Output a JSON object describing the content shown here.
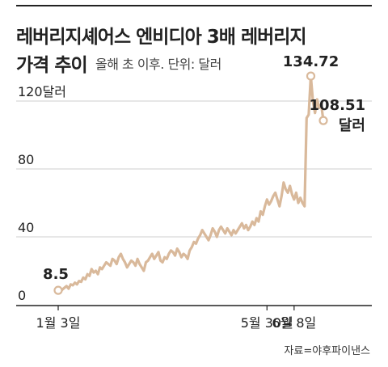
{
  "header": {
    "title_line1": "레버리지셰어스 엔비디아 3배 레버리지",
    "title_line2": "가격 추이",
    "subtitle": "올해 초 이후. 단위: 달러"
  },
  "source": "자료=야후파이낸스",
  "colors": {
    "line": "#d9b99b",
    "grid": "#cfcfcf",
    "axis": "#222222",
    "text": "#222222"
  },
  "chart_data": {
    "type": "line",
    "title": "레버리지셰어스 엔비디아 3배 레버리지 가격 추이",
    "subtitle": "올해 초 이후. 단위: 달러",
    "ylim": [
      0,
      140
    ],
    "y_ticks": [
      0,
      40,
      80,
      120
    ],
    "y_tick_labels": [
      "0",
      "40",
      "80",
      "120달러"
    ],
    "x_ticks": [
      0,
      100,
      113
    ],
    "x_tick_labels": [
      "1월 3일",
      "5월 30일",
      "6월 8일"
    ],
    "grid": true,
    "series": [
      {
        "values": [
          8.5,
          7.5,
          9,
          10,
          11,
          9.5,
          12,
          11.5,
          13,
          12,
          14,
          13.5,
          16,
          15,
          18,
          17,
          21,
          19,
          20,
          18,
          22,
          21,
          23,
          25,
          24,
          23,
          27,
          26,
          24,
          28,
          30,
          27,
          25,
          22,
          24,
          26,
          25,
          23,
          27,
          24,
          22,
          20,
          25,
          26,
          28,
          30,
          27,
          29,
          31,
          26,
          25,
          28,
          27,
          30,
          32,
          31,
          29,
          33,
          31,
          28,
          30,
          29,
          27,
          32,
          34,
          37,
          36,
          39,
          41,
          44,
          42,
          40,
          38,
          41,
          45,
          43,
          40,
          44,
          46,
          44,
          42,
          45,
          43,
          41,
          44,
          42,
          44,
          46,
          48,
          45,
          47,
          44,
          46,
          49,
          47,
          51,
          49,
          55,
          53,
          58,
          62,
          59,
          61,
          64,
          66,
          62,
          58,
          64,
          72,
          68,
          66,
          70,
          65,
          62,
          66,
          60,
          63,
          60,
          58,
          110,
          112,
          134.72,
          120,
          113,
          121,
          116,
          118,
          108.51
        ]
      }
    ],
    "annotations": [
      {
        "label": "8.5",
        "index": 0
      },
      {
        "label": "134.72",
        "index": 121
      },
      {
        "label": "108.51",
        "label2": "달러",
        "index": 127
      }
    ]
  }
}
